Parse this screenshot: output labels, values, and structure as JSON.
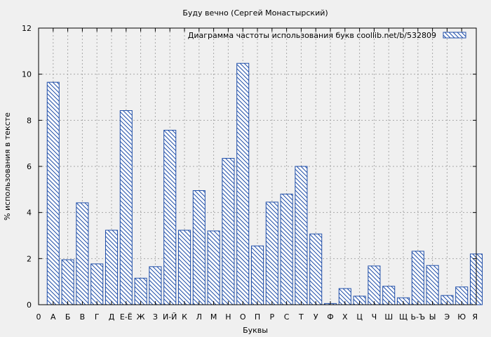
{
  "chart_data": {
    "type": "bar",
    "title": "Буду вечно (Сергей Монастырский)",
    "xlabel": "Буквы",
    "ylabel": "% использования в тексте",
    "legend": "Диаграмма частоты использования букв  coollib.net/b/532809",
    "legend_position": "top-right",
    "grid": true,
    "ylim": [
      0,
      12
    ],
    "yticks": [
      0,
      2,
      4,
      6,
      8,
      10,
      12
    ],
    "x_ticks": [
      "0",
      "А",
      "Б",
      "В",
      "Г",
      "Д",
      "Е-Ё",
      "Ж",
      "З",
      "И-Й",
      "К",
      "Л",
      "М",
      "Н",
      "О",
      "П",
      "Р",
      "С",
      "Т",
      "У",
      "Ф",
      "Х",
      "Ц",
      "Ч",
      "Ш",
      "Щ",
      "Ь-Ъ",
      "Ы",
      "Э",
      "Ю",
      "Я"
    ],
    "categories": [
      "А",
      "Б",
      "В",
      "Г",
      "Д",
      "Е-Ё",
      "Ж",
      "З",
      "И-Й",
      "К",
      "Л",
      "М",
      "Н",
      "О",
      "П",
      "Р",
      "С",
      "Т",
      "У",
      "Ф",
      "Х",
      "Ц",
      "Ч",
      "Ш",
      "Щ",
      "Ь-Ъ",
      "Ы",
      "Э",
      "Ю",
      "Я"
    ],
    "values": [
      9.65,
      1.95,
      4.42,
      1.77,
      3.23,
      8.42,
      1.15,
      1.65,
      7.57,
      3.23,
      4.95,
      3.2,
      6.35,
      10.47,
      2.55,
      4.45,
      4.8,
      6.0,
      3.07,
      0.05,
      0.7,
      0.37,
      1.68,
      0.8,
      0.3,
      2.32,
      1.7,
      0.4,
      0.77,
      2.2
    ],
    "colors": {
      "bar_stroke": "#1f4ea8",
      "hatch": "#1f4ea8",
      "grid": "#a8a8a8",
      "background": "#f0f0f0"
    }
  }
}
